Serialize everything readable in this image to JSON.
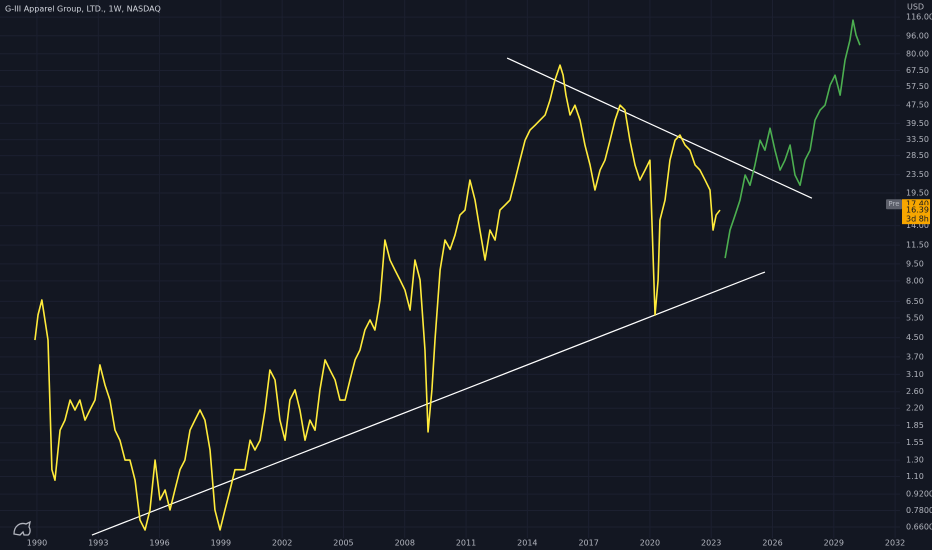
{
  "chart_data": {
    "type": "line",
    "title": "G-III Apparel Group, LTD., 1W, NASDAQ",
    "y_unit": "USD",
    "log_y": true,
    "grid": true,
    "xlim": [
      1988.19,
      2032.24
    ],
    "ylim": [
      0.59,
      138
    ],
    "xticks": [
      1990,
      1993,
      1996,
      1999,
      2002,
      2005,
      2008,
      2011,
      2014,
      2017,
      2020,
      2023,
      2026,
      2029,
      2032
    ],
    "yticks": [
      {
        "value": 116,
        "label": "116.00"
      },
      {
        "value": 96,
        "label": "96.00"
      },
      {
        "value": 80,
        "label": "80.00"
      },
      {
        "value": 67.5,
        "label": "67.50"
      },
      {
        "value": 57.5,
        "label": "57.50"
      },
      {
        "value": 47.5,
        "label": "47.50"
      },
      {
        "value": 39.5,
        "label": "39.50"
      },
      {
        "value": 33.5,
        "label": "33.50"
      },
      {
        "value": 28.5,
        "label": "28.50"
      },
      {
        "value": 23.5,
        "label": "23.50"
      },
      {
        "value": 19.5,
        "label": "19.50"
      },
      {
        "value": 14,
        "label": "14.00"
      },
      {
        "value": 11.5,
        "label": "11.50"
      },
      {
        "value": 9.5,
        "label": "9.50"
      },
      {
        "value": 8,
        "label": "8.00"
      },
      {
        "value": 6.5,
        "label": "6.50"
      },
      {
        "value": 5.5,
        "label": "5.50"
      },
      {
        "value": 4.5,
        "label": "4.50"
      },
      {
        "value": 3.7,
        "label": "3.70"
      },
      {
        "value": 3.1,
        "label": "3.10"
      },
      {
        "value": 2.6,
        "label": "2.60"
      },
      {
        "value": 2.2,
        "label": "2.20"
      },
      {
        "value": 1.85,
        "label": "1.85"
      },
      {
        "value": 1.55,
        "label": "1.55"
      },
      {
        "value": 1.3,
        "label": "1.30"
      },
      {
        "value": 1.1,
        "label": "1.10"
      },
      {
        "value": 0.92,
        "label": "0.9200"
      },
      {
        "value": 0.78,
        "label": "0.7800"
      },
      {
        "value": 0.66,
        "label": "0.6600"
      }
    ],
    "series": [
      {
        "color": "#ffeb3b",
        "x": [
          1989.9,
          1990.05,
          1990.24,
          1990.39,
          1990.54,
          1990.73,
          1990.88,
          1991.13,
          1991.37,
          1991.62,
          1991.86,
          1992.1,
          1992.35,
          1992.59,
          1992.84,
          1993.08,
          1993.33,
          1993.57,
          1993.82,
          1994.06,
          1994.31,
          1994.55,
          1994.8,
          1995.04,
          1995.29,
          1995.53,
          1995.78,
          1996.02,
          1996.27,
          1996.51,
          1996.75,
          1997.0,
          1997.24,
          1997.49,
          1997.73,
          1997.98,
          1998.22,
          1998.47,
          1998.71,
          1998.96,
          1999.2,
          1999.45,
          1999.69,
          1999.94,
          2000.18,
          2000.43,
          2000.67,
          2000.92,
          2001.16,
          2001.4,
          2001.65,
          2001.89,
          2002.14,
          2002.38,
          2002.63,
          2002.87,
          2003.12,
          2003.36,
          2003.61,
          2003.85,
          2004.1,
          2004.34,
          2004.59,
          2004.83,
          2005.08,
          2005.32,
          2005.57,
          2005.81,
          2006.05,
          2006.3,
          2006.54,
          2006.79,
          2007.03,
          2007.28,
          2007.52,
          2007.77,
          2008.01,
          2008.26,
          2008.5,
          2008.75,
          2008.99,
          2009.14,
          2009.33,
          2009.48,
          2009.73,
          2009.97,
          2010.22,
          2010.46,
          2010.7,
          2010.95,
          2011.19,
          2011.44,
          2011.68,
          2011.93,
          2012.17,
          2012.42,
          2012.66,
          2012.91,
          2013.15,
          2013.4,
          2013.64,
          2013.89,
          2014.13,
          2014.38,
          2014.62,
          2014.87,
          2015.11,
          2015.35,
          2015.6,
          2015.75,
          2015.89,
          2016.09,
          2016.33,
          2016.58,
          2016.82,
          2017.07,
          2017.31,
          2017.56,
          2017.8,
          2018.05,
          2018.29,
          2018.54,
          2018.78,
          2019.02,
          2019.27,
          2019.51,
          2019.76,
          2020.0,
          2020.25,
          2020.4,
          2020.49,
          2020.74,
          2020.98,
          2021.23,
          2021.47,
          2021.72,
          2021.96,
          2022.21,
          2022.45,
          2022.7,
          2022.94,
          2023.09,
          2023.24,
          2023.43
        ],
        "values": [
          4.39,
          5.66,
          6.59,
          5.38,
          4.39,
          1.18,
          1.06,
          1.76,
          1.95,
          2.39,
          2.16,
          2.39,
          1.95,
          2.16,
          2.39,
          3.41,
          2.78,
          2.39,
          1.76,
          1.59,
          1.3,
          1.3,
          1.06,
          0.708,
          0.64,
          0.784,
          1.3,
          0.868,
          0.96,
          0.784,
          0.96,
          1.18,
          1.3,
          1.76,
          1.95,
          2.16,
          1.95,
          1.44,
          0.784,
          0.64,
          0.784,
          0.96,
          1.18,
          1.18,
          1.18,
          1.59,
          1.44,
          1.59,
          2.16,
          3.24,
          2.93,
          1.95,
          1.59,
          2.39,
          2.65,
          2.16,
          1.59,
          1.95,
          1.76,
          2.65,
          3.59,
          3.24,
          2.93,
          2.39,
          2.39,
          2.93,
          3.59,
          3.97,
          4.86,
          5.38,
          4.86,
          6.59,
          12.1,
          9.88,
          8.93,
          8.07,
          7.29,
          5.95,
          9.88,
          8.07,
          3.97,
          1.73,
          2.65,
          4.39,
          8.93,
          12.1,
          11.01,
          12.73,
          15.59,
          16.4,
          22.23,
          18.15,
          13.39,
          9.88,
          13.39,
          12.1,
          16.4,
          17.25,
          18.15,
          22.23,
          27.2,
          33.3,
          36.9,
          38.8,
          40.8,
          43.0,
          50.0,
          61.2,
          71.3,
          64.4,
          52.6,
          43.0,
          47.5,
          40.8,
          31.7,
          25.9,
          20.1,
          24.6,
          27.2,
          33.3,
          40.8,
          47.5,
          45.2,
          33.3,
          25.9,
          22.23,
          24.6,
          27.2,
          5.66,
          8.07,
          14.8,
          18.15,
          27.2,
          33.3,
          35.1,
          31.7,
          30.1,
          25.9,
          24.6,
          22.23,
          20.1,
          13.39,
          15.59,
          16.4
        ]
      },
      {
        "color": "#4caf50",
        "x": [
          2023.68,
          2023.92,
          2024.17,
          2024.41,
          2024.66,
          2024.9,
          2025.14,
          2025.39,
          2025.63,
          2025.88,
          2026.12,
          2026.37,
          2026.61,
          2026.86,
          2027.1,
          2027.35,
          2027.59,
          2027.84,
          2028.08,
          2028.33,
          2028.57,
          2028.82,
          2029.06,
          2029.31,
          2029.55,
          2029.79,
          2029.94,
          2030.09,
          2030.28
        ],
        "values": [
          10.08,
          13.39,
          15.59,
          18.15,
          23.4,
          21.1,
          25.9,
          33.3,
          30.1,
          37.6,
          30.1,
          24.6,
          27.2,
          31.7,
          23.4,
          21.1,
          27.2,
          30.1,
          40.8,
          45.2,
          47.5,
          58.2,
          64.4,
          52.6,
          75.0,
          91.9,
          112.5,
          96.7,
          87.3
        ]
      }
    ],
    "trend_lines": [
      {
        "color": "#ffffff",
        "x": [
          1992.69,
          2025.63
        ],
        "y": [
          0.608,
          8.75
        ]
      },
      {
        "color": "#ffffff",
        "x": [
          2013.01,
          2027.93
        ],
        "y": [
          76.6,
          18.5
        ]
      }
    ],
    "price_badges": {
      "tag": "Pre",
      "current": {
        "value": 17.4,
        "label": "17.40"
      },
      "last": {
        "value": 16.39,
        "label": "16.39"
      },
      "countdown": "3d 8h"
    }
  }
}
